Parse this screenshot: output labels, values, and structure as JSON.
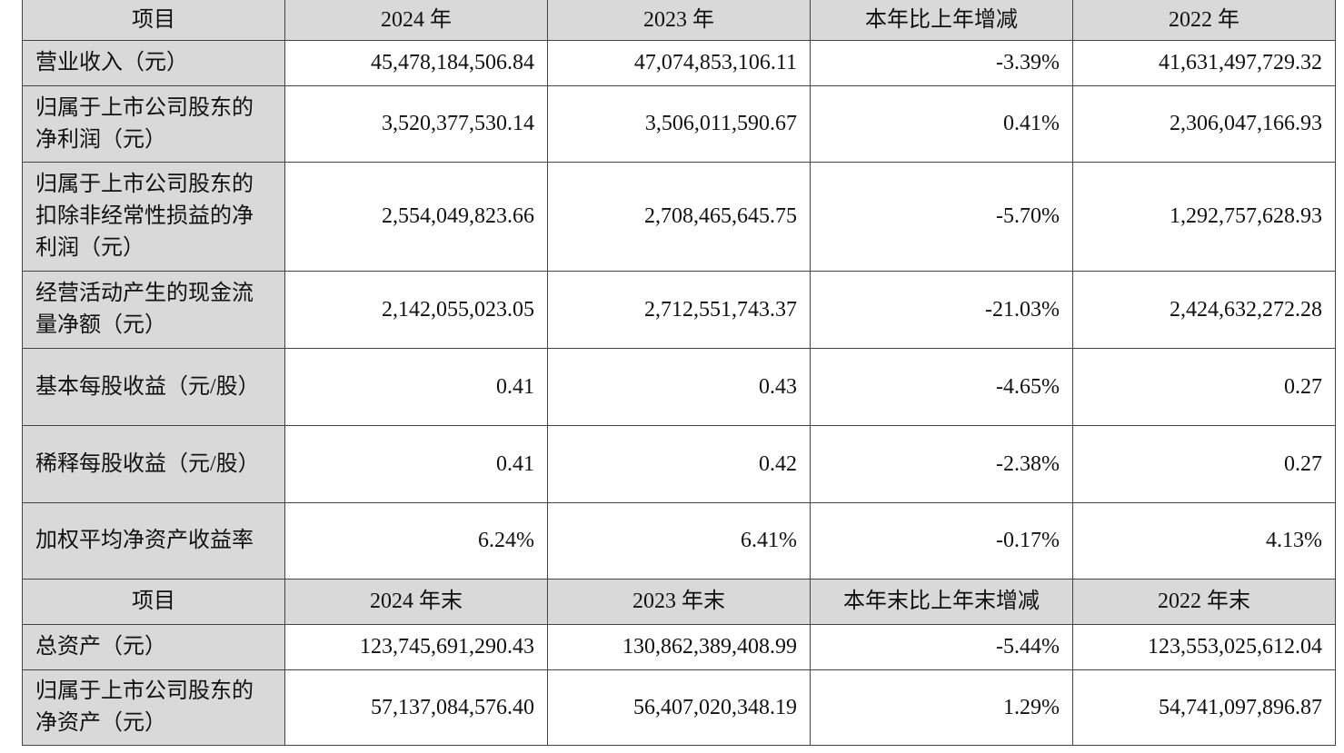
{
  "header1": [
    "项目",
    "2024 年",
    "2023 年",
    "本年比上年增减",
    "2022 年"
  ],
  "rows1": [
    {
      "label": "营业收入（元）",
      "values": [
        "45,478,184,506.84",
        "47,074,853,106.11",
        "-3.39%",
        "41,631,497,729.32"
      ]
    },
    {
      "label": "归属于上市公司股东的净利润（元）",
      "values": [
        "3,520,377,530.14",
        "3,506,011,590.67",
        "0.41%",
        "2,306,047,166.93"
      ]
    },
    {
      "label": "归属于上市公司股东的扣除非经常性损益的净利润（元）",
      "values": [
        "2,554,049,823.66",
        "2,708,465,645.75",
        "-5.70%",
        "1,292,757,628.93"
      ]
    },
    {
      "label": "经营活动产生的现金流量净额（元）",
      "values": [
        "2,142,055,023.05",
        "2,712,551,743.37",
        "-21.03%",
        "2,424,632,272.28"
      ]
    },
    {
      "label": "基本每股收益（元/股）",
      "values": [
        "0.41",
        "0.43",
        "-4.65%",
        "0.27"
      ]
    },
    {
      "label": "稀释每股收益（元/股）",
      "values": [
        "0.41",
        "0.42",
        "-2.38%",
        "0.27"
      ]
    },
    {
      "label": "加权平均净资产收益率",
      "values": [
        "6.24%",
        "6.41%",
        "-0.17%",
        "4.13%"
      ]
    }
  ],
  "header2": [
    "项目",
    "2024 年末",
    "2023 年末",
    "本年末比上年末增减",
    "2022 年末"
  ],
  "rows2": [
    {
      "label": "总资产（元）",
      "values": [
        "123,745,691,290.43",
        "130,862,389,408.99",
        "-5.44%",
        "123,553,025,612.04"
      ]
    },
    {
      "label": "归属于上市公司股东的净资产（元）",
      "values": [
        "57,137,084,576.40",
        "56,407,020,348.19",
        "1.29%",
        "54,741,097,896.87"
      ]
    }
  ]
}
